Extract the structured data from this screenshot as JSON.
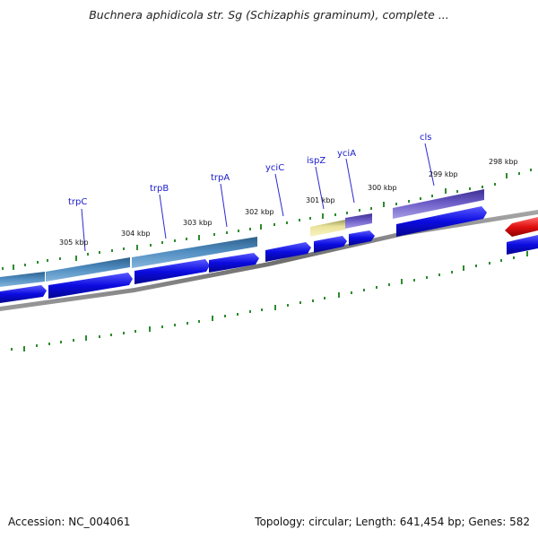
{
  "title": "Buchnera aphidicola str. Sg (Schizaphis graminum), complete ...",
  "footer": {
    "accession": "Accession: NC_004061",
    "stats": "Topology: circular; Length: 641,454 bp; Genes: 582"
  },
  "genes": [
    {
      "name": "trpC"
    },
    {
      "name": "trpB"
    },
    {
      "name": "trpA"
    },
    {
      "name": "yciC"
    },
    {
      "name": "ispZ"
    },
    {
      "name": "yciA"
    },
    {
      "name": "cls"
    }
  ],
  "kbp_ticks": [
    "305 kbp",
    "304 kbp",
    "303 kbp",
    "302 kbp",
    "301 kbp",
    "300 kbp",
    "299 kbp",
    "298 kbp"
  ],
  "colors": {
    "backbone": "#7a7a7a",
    "cds": "#0a0adf",
    "trp_operon": "#4a86b8",
    "ispZ": "#ebe39a",
    "yciA_cls": "#6b5cc6",
    "red_feature": "#e01010",
    "tick": "#2e8b2e"
  }
}
